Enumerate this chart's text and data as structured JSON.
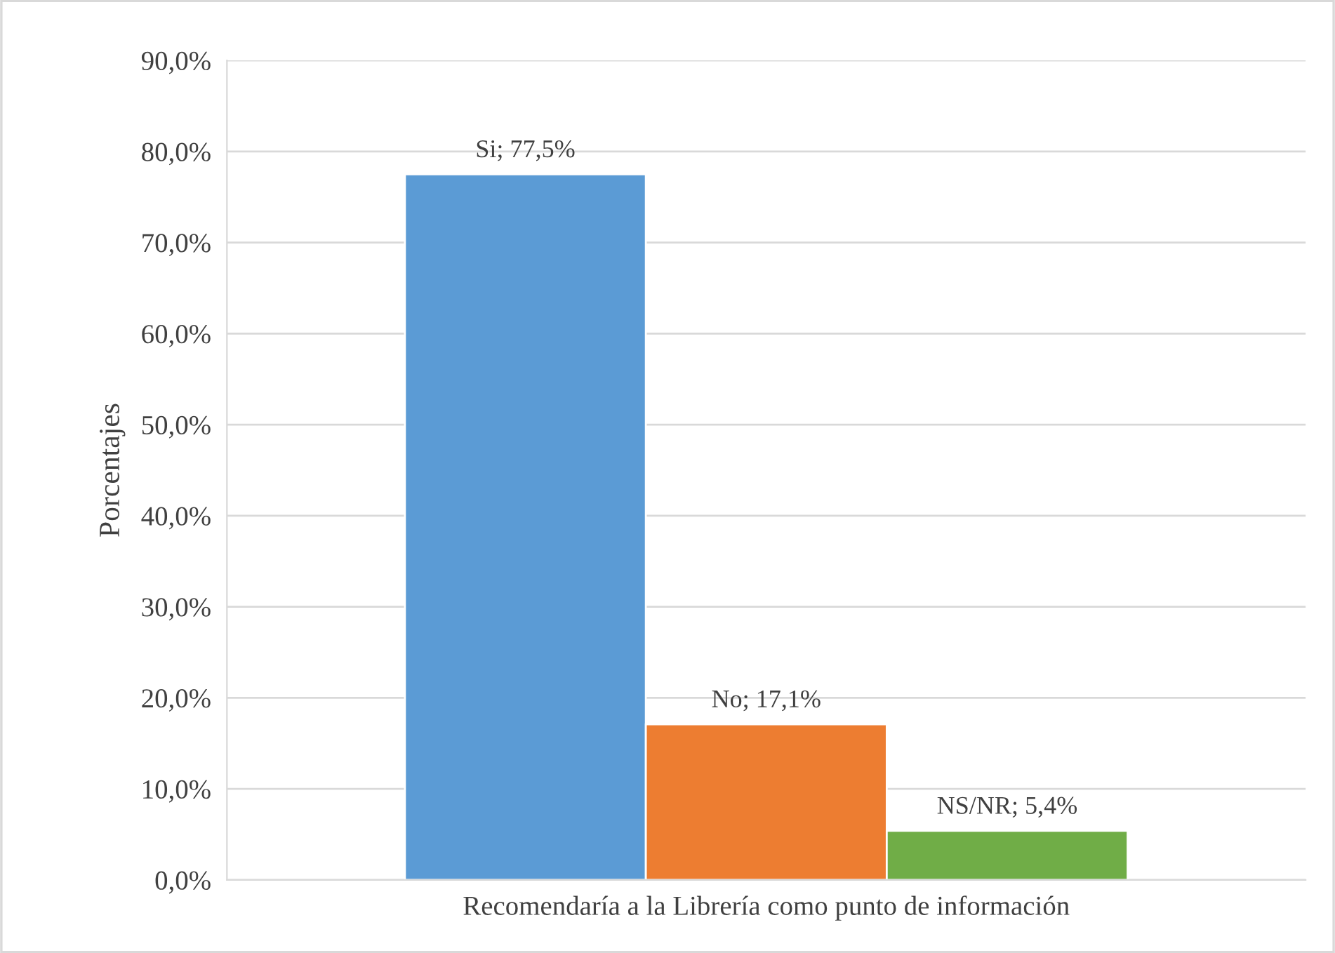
{
  "chart_data": {
    "type": "bar",
    "xlabel": "Recomendaría a la Librería como punto de información",
    "ylabel": "Porcentajes",
    "categories": [
      null
    ],
    "series": [
      {
        "name": "Si",
        "color": "#5b9bd5",
        "values": [
          77.5
        ],
        "value_labels": [
          "; 77,5%"
        ]
      },
      {
        "name": "No",
        "color": "#ed7d31",
        "values": [
          17.1
        ],
        "value_labels": [
          "; 17,1%"
        ]
      },
      {
        "name": "NS/NR",
        "color": "#70ad47",
        "values": [
          5.4
        ],
        "value_labels": [
          "; 5,4%"
        ]
      }
    ],
    "ylim": [
      0,
      90
    ],
    "yticks": [
      {
        "value": 0,
        "label": "0,0%"
      },
      {
        "value": 10,
        "label": "10,0%"
      },
      {
        "value": 20,
        "label": "20,0%"
      },
      {
        "value": 30,
        "label": "30,0%"
      },
      {
        "value": 40,
        "label": "40,0%"
      },
      {
        "value": 50,
        "label": "50,0%"
      },
      {
        "value": 60,
        "label": "60,0%"
      },
      {
        "value": 70,
        "label": "70,0%"
      },
      {
        "value": 80,
        "label": "80,0%"
      },
      {
        "value": 90,
        "label": "90,0%"
      }
    ],
    "grid": "y",
    "legend": false
  }
}
